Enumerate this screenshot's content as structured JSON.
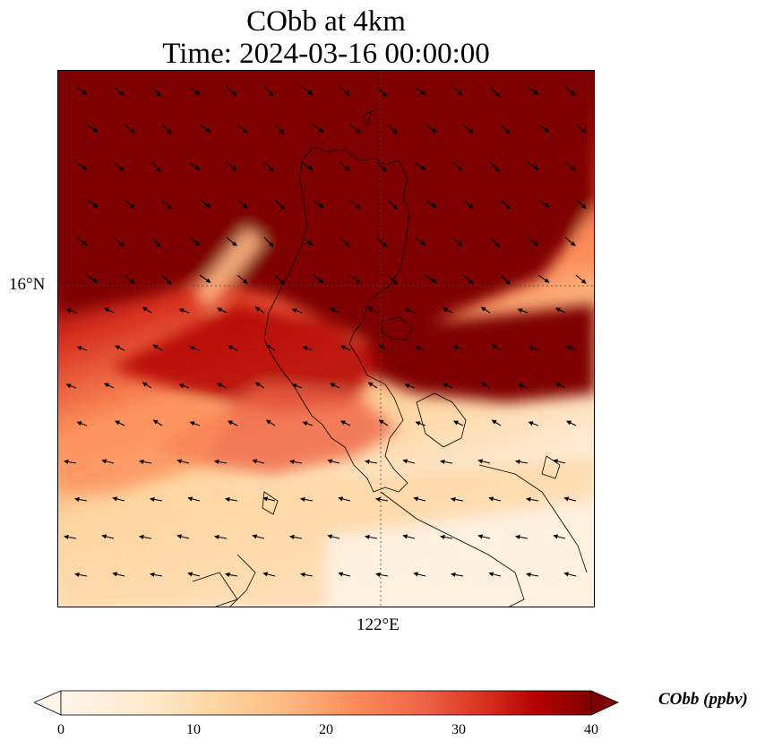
{
  "title": {
    "line1": "CObb at 4km",
    "line2": "Time: 2024-03-16 00:00:00"
  },
  "axes": {
    "lat_tick": "16°N",
    "lon_tick": "122°E"
  },
  "colorbar": {
    "label": "CObb (ppbv)",
    "ticks": [
      "0",
      "10",
      "20",
      "30",
      "40"
    ],
    "min": 0,
    "max": 40,
    "extend": "both",
    "colors": [
      "#fff5eb",
      "#fdd49e",
      "#fdbb84",
      "#fc8d59",
      "#ef6548",
      "#d7301f",
      "#b30000",
      "#7f0000"
    ]
  }
}
